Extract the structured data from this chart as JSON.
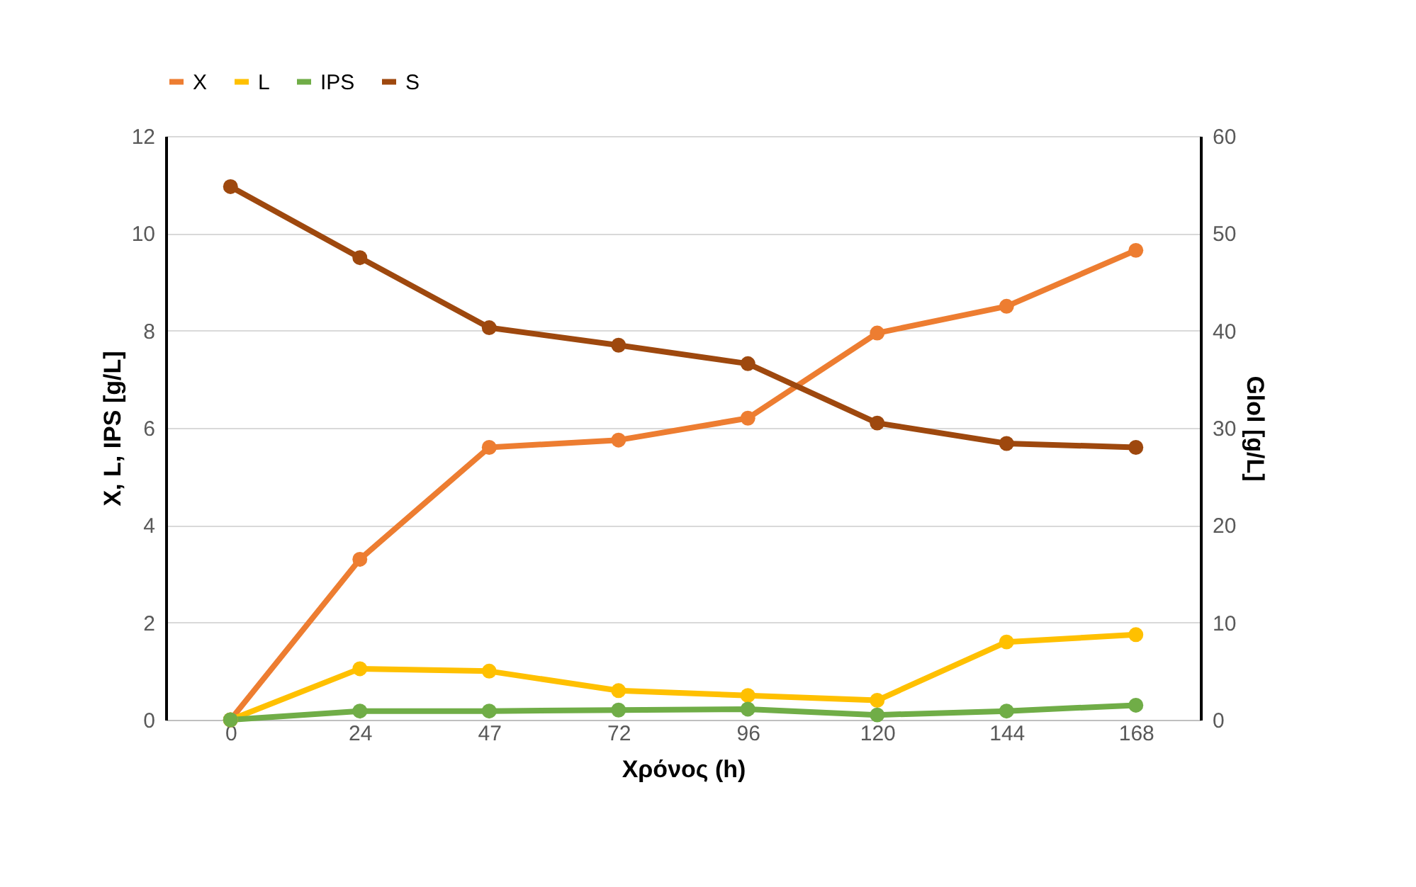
{
  "chart_data": {
    "type": "line",
    "xlabel": "Χρόνος (h)",
    "ylabel": "X, L, IPS [g/L]",
    "y2label": "Glol [g/L]",
    "categories": [
      "0",
      "24",
      "47",
      "72",
      "96",
      "120",
      "144",
      "168"
    ],
    "series": [
      {
        "name": "X",
        "color": "#ed7d31",
        "values": [
          0,
          3.3,
          5.6,
          5.75,
          6.2,
          7.95,
          8.5,
          9.65
        ]
      },
      {
        "name": "L",
        "color": "#ffc000",
        "values": [
          0,
          1.05,
          1.0,
          0.6,
          0.5,
          0.4,
          1.6,
          1.75
        ]
      },
      {
        "name": "IPS",
        "color": "#70ad47",
        "values": [
          0,
          0.18,
          0.18,
          0.2,
          0.22,
          0.1,
          0.18,
          0.3
        ]
      },
      {
        "name": "S",
        "color": "#9e480e",
        "axis": "y2",
        "values": [
          54.8,
          47.5,
          40.3,
          38.5,
          36.6,
          30.5,
          28.4,
          28.0
        ]
      }
    ],
    "ylim": [
      0,
      12
    ],
    "yticks": [
      0,
      2,
      4,
      6,
      8,
      10,
      12
    ],
    "y2lim": [
      0,
      60
    ],
    "y2ticks": [
      0,
      10,
      20,
      30,
      40,
      50,
      60
    ],
    "grid": "y",
    "legend": "top",
    "marker": "circle",
    "line_style": "solid"
  }
}
